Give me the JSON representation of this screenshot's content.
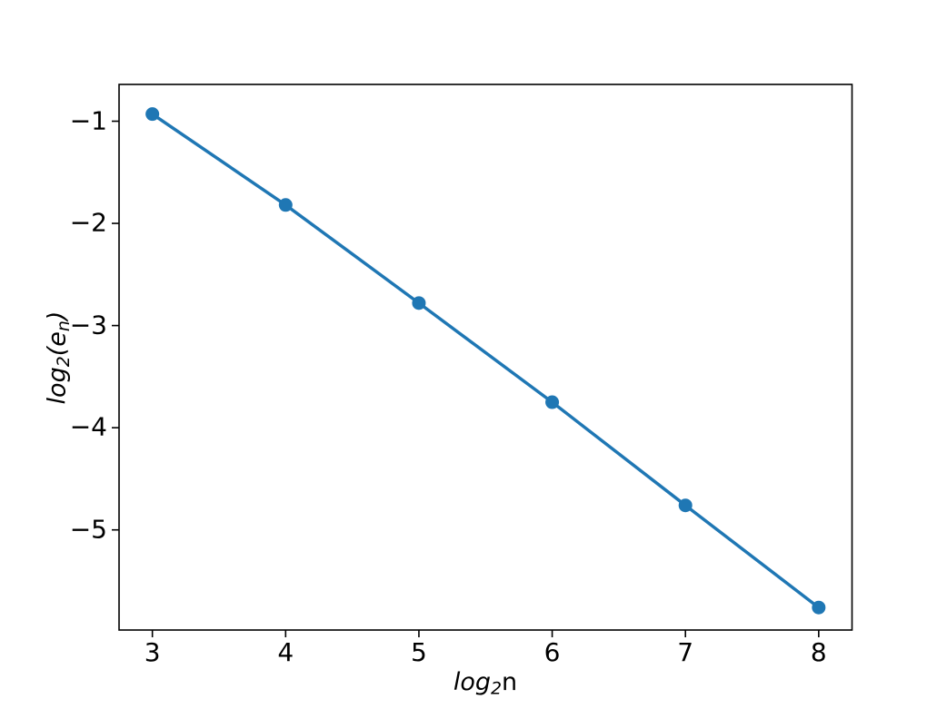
{
  "figure": {
    "background": "#ffffff",
    "axes_color": "#000000",
    "text_color": "#000000"
  },
  "chart_data": {
    "type": "line",
    "title": "",
    "line_color": "#1f77b4",
    "marker": "circle",
    "marker_color": "#1f77b4",
    "grid": false,
    "legend": false,
    "x": [
      3,
      4,
      5,
      6,
      7,
      8
    ],
    "y": [
      -0.93,
      -1.82,
      -2.78,
      -3.75,
      -4.76,
      -5.76
    ],
    "xlim": [
      2.75,
      8.25
    ],
    "ylim": [
      -5.98,
      -0.64
    ],
    "xticks": [
      3,
      4,
      5,
      6,
      7,
      8
    ],
    "xtick_labels": [
      "3",
      "4",
      "5",
      "6",
      "7",
      "8"
    ],
    "yticks": [
      -1,
      -2,
      -3,
      -4,
      -5
    ],
    "ytick_labels": [
      "−1",
      "−2",
      "−3",
      "−4",
      "−5"
    ],
    "xlabel": {
      "italic_word": "log",
      "subscript": "2",
      "suffix": "n"
    },
    "ylabel": {
      "italic_word": "log",
      "subscript": "2",
      "open_paren": "(",
      "variable": "e",
      "var_subscript": "n",
      "close_paren": ")"
    }
  }
}
